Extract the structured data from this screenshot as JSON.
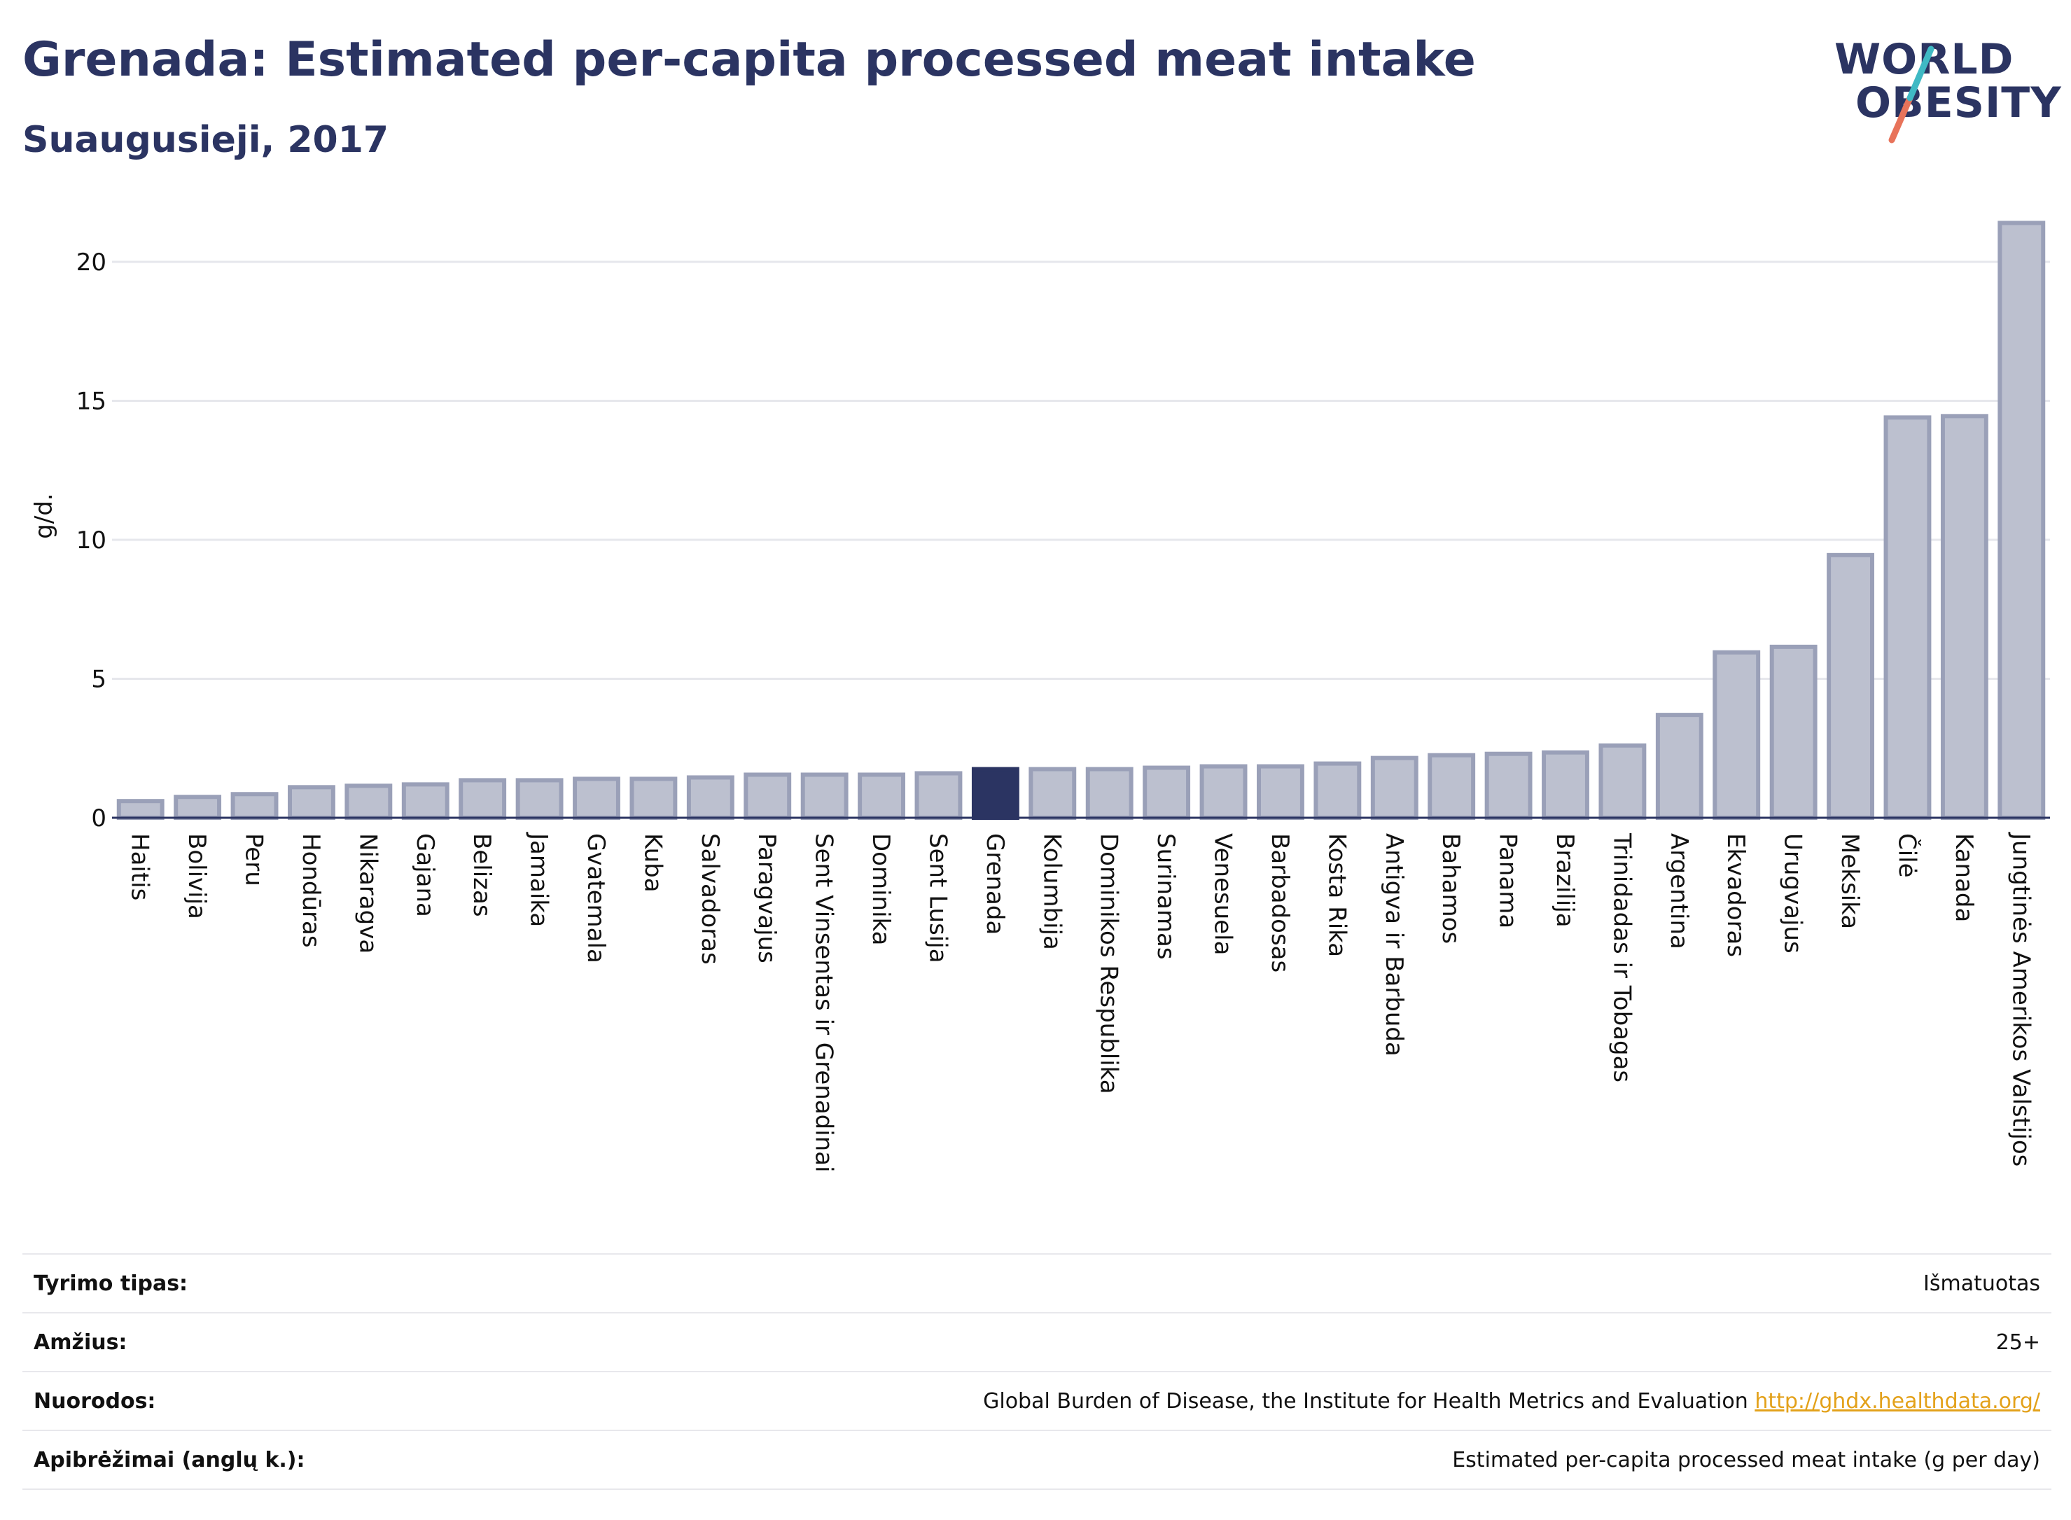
{
  "header": {
    "title": "Grenada: Estimated per-capita processed meat intake",
    "subtitle": "Suaugusieji, 2017"
  },
  "logo": {
    "line1": "WORLD",
    "line2": "OBESITY"
  },
  "colors": {
    "bar": "#bcc0cf",
    "bar_border": "#9aa0b8",
    "highlight": "#2b3462",
    "text": "#2b3462"
  },
  "chart_data": {
    "type": "bar",
    "title": "Grenada: Estimated per-capita processed meat intake",
    "subtitle": "Suaugusieji, 2017",
    "ylabel": "g/d.",
    "xlabel": "",
    "ylim": [
      0,
      22
    ],
    "yticks": [
      0,
      5,
      10,
      15,
      20
    ],
    "grid": true,
    "highlight": "Grenada",
    "categories": [
      "Haitis",
      "Bolivija",
      "Peru",
      "Hondūras",
      "Nikaragva",
      "Gajana",
      "Belizas",
      "Jamaika",
      "Gvatemala",
      "Kuba",
      "Salvadoras",
      "Paragvajus",
      "Sent Vinsentas ir Grenadinai",
      "Dominika",
      "Sent Lusija",
      "Grenada",
      "Kolumbija",
      "Dominikos Respublika",
      "Surinamas",
      "Venesuela",
      "Barbadosas",
      "Kosta Rika",
      "Antigva ir Barbuda",
      "Bahamos",
      "Panama",
      "Brazilija",
      "Trinidadas ir Tobagas",
      "Argentina",
      "Ekvadoras",
      "Urugvajus",
      "Meksika",
      "Čilė",
      "Kanada",
      "Jungtinės Amerikos Valstijos"
    ],
    "values": [
      0.6,
      0.75,
      0.85,
      1.1,
      1.15,
      1.2,
      1.35,
      1.35,
      1.4,
      1.4,
      1.45,
      1.55,
      1.55,
      1.55,
      1.6,
      1.75,
      1.75,
      1.75,
      1.8,
      1.85,
      1.85,
      1.95,
      2.15,
      2.25,
      2.3,
      2.35,
      2.6,
      3.7,
      5.95,
      6.15,
      9.45,
      14.4,
      14.45,
      21.4
    ]
  },
  "meta": {
    "rows": [
      {
        "key": "Tyrimo tipas:",
        "value": "Išmatuotas",
        "link": ""
      },
      {
        "key": "Amžius:",
        "value": "25+",
        "link": ""
      },
      {
        "key": "Nuorodos:",
        "value": "Global Burden of Disease, the Institute for Health Metrics and Evaluation",
        "link": "http://ghdx.healthdata.org/"
      },
      {
        "key": "Apibrėžimai (anglų k.):",
        "value": "Estimated per-capita processed meat intake (g per day)",
        "link": ""
      }
    ]
  }
}
